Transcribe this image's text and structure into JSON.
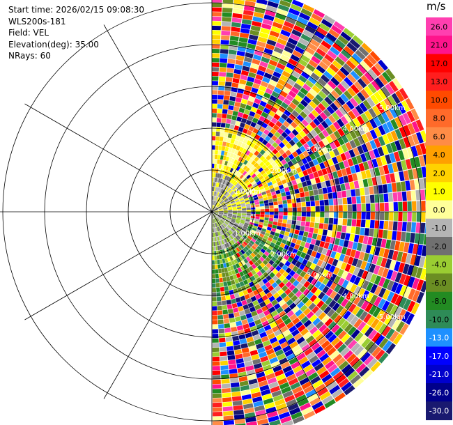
{
  "info": {
    "start_time": "Start time: 2026/02/15 09:08:30",
    "instrument": "WLS200s-181",
    "field": "Field: VEL",
    "elevation": "Elevation(deg): 35.00",
    "nrays": "NRays: 60"
  },
  "colorbar": {
    "unit": "m/s",
    "ticks": [
      "26.0",
      "21.0",
      "17.0",
      "13.0",
      "10.0",
      "8.0",
      "6.0",
      "4.0",
      "2.0",
      "1.0",
      "0.0",
      "-1.0",
      "-2.0",
      "-4.0",
      "-6.0",
      "-8.0",
      "-10.0",
      "-13.0",
      "-17.0",
      "-21.0",
      "-26.0",
      "-30.0"
    ],
    "colors": [
      "#ff3fb0",
      "#ff148c",
      "#ff0000",
      "#ff1e1e",
      "#ff4a00",
      "#ff6a2a",
      "#ff8c46",
      "#ffa000",
      "#ffd200",
      "#ffff00",
      "#ffff9a",
      "#b4b4b4",
      "#707070",
      "#9acd32",
      "#6b8e23",
      "#228b22",
      "#2e8b57",
      "#1e90ff",
      "#0000ff",
      "#0000cd",
      "#00008b",
      "#191970"
    ]
  },
  "chart_data": {
    "type": "ppi",
    "field": "VEL",
    "units": "m/s",
    "elevation_deg": 35.0,
    "n_rays": 60,
    "sector_azimuth_deg": [
      0,
      180
    ],
    "range_rings_km": [
      1.0,
      2.0,
      3.0,
      4.0,
      5.0
    ],
    "range_labels": [
      "1.00km",
      "2.00km",
      "3.00km",
      "4.00km",
      "5.00km"
    ],
    "max_range_km": 5.4,
    "grid_spokes_deg": [
      0,
      30,
      60,
      90,
      120,
      150,
      180,
      210,
      240,
      270,
      300,
      330
    ],
    "vmin": -30.0,
    "vmax": 30.0
  }
}
